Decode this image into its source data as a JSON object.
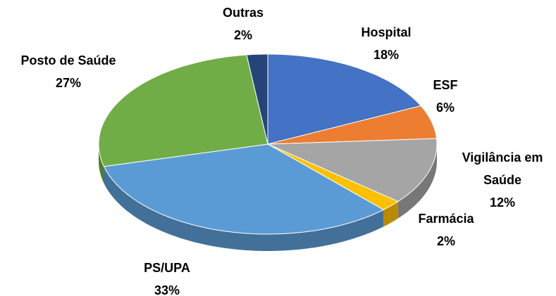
{
  "chart_data": {
    "type": "pie3d",
    "categories": [
      "Hospital",
      "ESF",
      "Vigilância em Saúde",
      "Farmácia",
      "PS/UPA",
      "Posto de Saúde",
      "Outras"
    ],
    "values": [
      18,
      6,
      12,
      2,
      33,
      27,
      2
    ],
    "value_labels": [
      "18%",
      "6%",
      "12%",
      "2%",
      "33%",
      "27%",
      "2%"
    ],
    "colors": [
      "#4472c4",
      "#ed7d31",
      "#a5a5a5",
      "#ffc000",
      "#5b9bd5",
      "#70ad47",
      "#264478"
    ]
  }
}
